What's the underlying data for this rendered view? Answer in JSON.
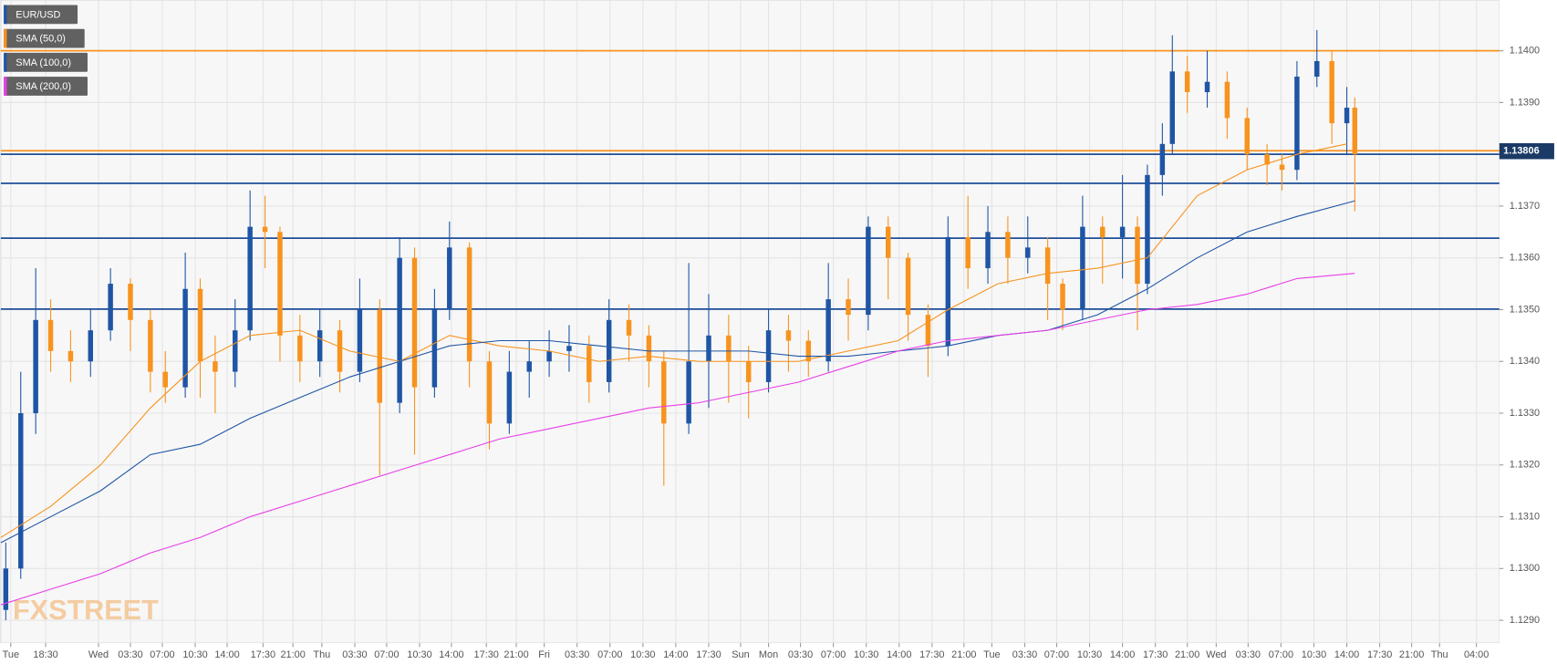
{
  "chart_data": {
    "type": "candlestick",
    "watermark": "FXSTREET",
    "grid": true,
    "xlim": [
      0,
      300.6
    ],
    "ylim": [
      1.12856,
      1.14098
    ],
    "xticks": [
      {
        "value": 2,
        "label": "Tue"
      },
      {
        "value": 9,
        "label": "18:30"
      },
      {
        "value": 19.6,
        "label": "Wed"
      },
      {
        "value": 26,
        "label": "03:30"
      },
      {
        "value": 32.4,
        "label": "07:00"
      },
      {
        "value": 39,
        "label": "10:30"
      },
      {
        "value": 45.4,
        "label": "14:00"
      },
      {
        "value": 52.6,
        "label": "17:30"
      },
      {
        "value": 58.6,
        "label": "21:00"
      },
      {
        "value": 64.4,
        "label": "Thu"
      },
      {
        "value": 71,
        "label": "03:30"
      },
      {
        "value": 77.4,
        "label": "07:00"
      },
      {
        "value": 84,
        "label": "10:30"
      },
      {
        "value": 90.4,
        "label": "14:00"
      },
      {
        "value": 97.4,
        "label": "17:30"
      },
      {
        "value": 103.4,
        "label": "21:00"
      },
      {
        "value": 109,
        "label": "Fri"
      },
      {
        "value": 115.6,
        "label": "03:30"
      },
      {
        "value": 122.2,
        "label": "07:00"
      },
      {
        "value": 128.8,
        "label": "10:30"
      },
      {
        "value": 135.4,
        "label": "14:00"
      },
      {
        "value": 142,
        "label": "17:30"
      },
      {
        "value": 148.4,
        "label": "Sun"
      },
      {
        "value": 154,
        "label": "Mon"
      },
      {
        "value": 160.4,
        "label": "03:30"
      },
      {
        "value": 167,
        "label": "07:00"
      },
      {
        "value": 173.6,
        "label": "10:30"
      },
      {
        "value": 180.2,
        "label": "14:00"
      },
      {
        "value": 186.8,
        "label": "17:30"
      },
      {
        "value": 193.2,
        "label": "21:00"
      },
      {
        "value": 198.8,
        "label": "Tue"
      },
      {
        "value": 205.4,
        "label": "03:30"
      },
      {
        "value": 211.8,
        "label": "07:00"
      },
      {
        "value": 218.4,
        "label": "10:30"
      },
      {
        "value": 225,
        "label": "14:00"
      },
      {
        "value": 231.6,
        "label": "17:30"
      },
      {
        "value": 238,
        "label": "21:00"
      },
      {
        "value": 243.8,
        "label": "Wed"
      },
      {
        "value": 250.2,
        "label": "03:30"
      },
      {
        "value": 256.8,
        "label": "07:00"
      },
      {
        "value": 263.4,
        "label": "10:30"
      },
      {
        "value": 270,
        "label": "14:00"
      },
      {
        "value": 276.6,
        "label": "17:30"
      },
      {
        "value": 283,
        "label": "21:00"
      },
      {
        "value": 288.6,
        "label": "Thu"
      },
      {
        "value": 296,
        "label": "04:00"
      }
    ],
    "yticks": [
      {
        "value": 1.129,
        "label": "1.1290"
      },
      {
        "value": 1.13,
        "label": "1.1300"
      },
      {
        "value": 1.131,
        "label": "1.1310"
      },
      {
        "value": 1.132,
        "label": "1.1320"
      },
      {
        "value": 1.133,
        "label": "1.1330"
      },
      {
        "value": 1.134,
        "label": "1.1340"
      },
      {
        "value": 1.135,
        "label": "1.1350"
      },
      {
        "value": 1.136,
        "label": "1.1360"
      },
      {
        "value": 1.137,
        "label": "1.1370"
      },
      {
        "value": 1.138,
        "label": "1.1380"
      },
      {
        "value": 1.139,
        "label": "1.1390"
      },
      {
        "value": 1.14,
        "label": "1.1400"
      }
    ],
    "current_price": 1.13806,
    "levels": [
      {
        "value": 1.14,
        "color": "#f7931e"
      },
      {
        "value": 1.13807,
        "color": "#f7931e"
      },
      {
        "value": 1.138,
        "color": "#1f4e99"
      },
      {
        "value": 1.13744,
        "color": "#1f4e99"
      },
      {
        "value": 1.13638,
        "color": "#1f4e99"
      },
      {
        "value": 1.13501,
        "color": "#1f4e99"
      }
    ],
    "series": [
      {
        "name": "EUR/USD",
        "color": "#1f55a5",
        "up_color": "#1f55a5",
        "down_color": "#f7931e",
        "x": [
          1,
          4,
          7,
          10,
          14,
          18,
          22,
          26,
          30,
          33,
          37,
          40,
          43,
          47,
          50,
          53,
          56,
          60,
          64,
          68,
          72,
          76,
          80,
          83,
          87,
          90,
          94,
          98,
          102,
          106,
          110,
          114,
          118,
          122,
          126,
          130,
          133,
          138,
          142,
          146,
          150,
          154,
          158,
          162,
          166,
          170,
          174,
          178,
          182,
          186,
          190,
          194,
          198,
          202,
          206,
          210,
          213,
          217,
          221,
          225,
          228,
          230,
          233,
          235,
          238,
          242,
          246,
          250,
          254,
          257,
          260,
          264,
          267,
          270,
          271.6
        ],
        "open": [
          1.1292,
          1.13,
          1.133,
          1.1348,
          1.1342,
          1.134,
          1.1346,
          1.1355,
          1.1348,
          1.1338,
          1.1335,
          1.1354,
          1.134,
          1.1338,
          1.1346,
          1.1366,
          1.1365,
          1.1345,
          1.134,
          1.1346,
          1.1338,
          1.135,
          1.1332,
          1.136,
          1.1335,
          1.135,
          1.1362,
          1.134,
          1.1328,
          1.1338,
          1.134,
          1.1342,
          1.1343,
          1.1336,
          1.1348,
          1.1345,
          1.134,
          1.1328,
          1.134,
          1.1345,
          1.134,
          1.1336,
          1.1346,
          1.1344,
          1.134,
          1.1352,
          1.1349,
          1.1366,
          1.136,
          1.1349,
          1.1343,
          1.1364,
          1.1358,
          1.1365,
          1.136,
          1.1362,
          1.1355,
          1.135,
          1.1366,
          1.1364,
          1.1366,
          1.1355,
          1.1376,
          1.1382,
          1.1396,
          1.1392,
          1.1394,
          1.1387,
          1.138,
          1.1378,
          1.1377,
          1.1395,
          1.1398,
          1.1386,
          1.1389
        ],
        "high": [
          1.1305,
          1.1338,
          1.1358,
          1.1352,
          1.1346,
          1.135,
          1.1358,
          1.1356,
          1.135,
          1.1342,
          1.1361,
          1.1356,
          1.1345,
          1.1352,
          1.1373,
          1.1372,
          1.1366,
          1.1349,
          1.135,
          1.1348,
          1.1356,
          1.1352,
          1.1364,
          1.1362,
          1.1354,
          1.1367,
          1.1363,
          1.1342,
          1.1342,
          1.1344,
          1.1346,
          1.1347,
          1.1345,
          1.1352,
          1.1351,
          1.1347,
          1.1342,
          1.1359,
          1.1353,
          1.1349,
          1.1343,
          1.135,
          1.1349,
          1.1346,
          1.1359,
          1.1356,
          1.1368,
          1.1368,
          1.1361,
          1.1351,
          1.1368,
          1.1372,
          1.137,
          1.1368,
          1.1368,
          1.1364,
          1.1356,
          1.1372,
          1.1368,
          1.1376,
          1.1368,
          1.1378,
          1.1386,
          1.1403,
          1.1399,
          1.14,
          1.1396,
          1.1389,
          1.1382,
          1.138,
          1.1398,
          1.1404,
          1.14,
          1.1393,
          1.1391
        ],
        "low": [
          1.129,
          1.1298,
          1.1326,
          1.1338,
          1.1336,
          1.1337,
          1.1344,
          1.1342,
          1.1334,
          1.1332,
          1.1333,
          1.1333,
          1.133,
          1.1335,
          1.1344,
          1.1358,
          1.134,
          1.1336,
          1.1337,
          1.1334,
          1.1336,
          1.1318,
          1.133,
          1.1322,
          1.1333,
          1.1348,
          1.1335,
          1.1323,
          1.1326,
          1.1333,
          1.1337,
          1.1338,
          1.1332,
          1.1334,
          1.134,
          1.1335,
          1.1316,
          1.1326,
          1.1331,
          1.1332,
          1.1329,
          1.1334,
          1.1338,
          1.1337,
          1.1338,
          1.1344,
          1.1346,
          1.1352,
          1.1344,
          1.1337,
          1.1341,
          1.1354,
          1.1355,
          1.1355,
          1.1357,
          1.1348,
          1.1346,
          1.1348,
          1.1355,
          1.1356,
          1.1346,
          1.1353,
          1.1372,
          1.138,
          1.1388,
          1.1389,
          1.1383,
          1.1377,
          1.1374,
          1.1373,
          1.1375,
          1.1393,
          1.1382,
          1.138,
          1.1369
        ],
        "close": [
          1.13,
          1.133,
          1.1348,
          1.1342,
          1.134,
          1.1346,
          1.1355,
          1.1348,
          1.1338,
          1.1335,
          1.1354,
          1.134,
          1.1338,
          1.1346,
          1.1366,
          1.1365,
          1.1345,
          1.134,
          1.1346,
          1.1338,
          1.135,
          1.1332,
          1.136,
          1.1335,
          1.135,
          1.1362,
          1.134,
          1.1328,
          1.1338,
          1.134,
          1.1342,
          1.1343,
          1.1336,
          1.1348,
          1.1345,
          1.134,
          1.1328,
          1.134,
          1.1345,
          1.134,
          1.1336,
          1.1346,
          1.1344,
          1.134,
          1.1352,
          1.1349,
          1.1366,
          1.136,
          1.1349,
          1.1343,
          1.1364,
          1.1358,
          1.1365,
          1.136,
          1.1362,
          1.1355,
          1.135,
          1.1366,
          1.1364,
          1.1366,
          1.1355,
          1.1376,
          1.1382,
          1.1396,
          1.1392,
          1.1394,
          1.1387,
          1.138,
          1.1378,
          1.1377,
          1.1395,
          1.1398,
          1.1386,
          1.1389,
          1.138
        ]
      },
      {
        "name": "SMA (50,0)",
        "color": "#f7931e",
        "x": [
          0,
          10,
          20,
          30,
          40,
          50,
          60,
          70,
          80,
          90,
          100,
          110,
          120,
          130,
          140,
          150,
          160,
          170,
          180,
          190,
          200,
          210,
          220,
          230,
          240,
          250,
          260,
          270
        ],
        "values": [
          1.1306,
          1.1312,
          1.132,
          1.1331,
          1.134,
          1.1345,
          1.1346,
          1.1342,
          1.134,
          1.1345,
          1.1343,
          1.1342,
          1.134,
          1.1341,
          1.134,
          1.134,
          1.134,
          1.1342,
          1.1344,
          1.135,
          1.1355,
          1.1357,
          1.1358,
          1.136,
          1.1372,
          1.1377,
          1.138,
          1.1382
        ]
      },
      {
        "name": "SMA (100,0)",
        "color": "#1f55a5",
        "x": [
          0,
          10,
          20,
          30,
          40,
          50,
          60,
          70,
          80,
          90,
          100,
          110,
          120,
          130,
          140,
          150,
          160,
          170,
          180,
          190,
          200,
          210,
          220,
          230,
          240,
          250,
          260,
          271.6
        ],
        "values": [
          1.1305,
          1.131,
          1.1315,
          1.1322,
          1.1324,
          1.1329,
          1.1333,
          1.1337,
          1.134,
          1.1343,
          1.1344,
          1.1344,
          1.1343,
          1.1342,
          1.1342,
          1.1342,
          1.1341,
          1.1341,
          1.1342,
          1.1343,
          1.1345,
          1.1346,
          1.1349,
          1.1354,
          1.136,
          1.1365,
          1.1368,
          1.1371
        ]
      },
      {
        "name": "SMA (200,0)",
        "color": "#e83ee8",
        "x": [
          0,
          10,
          20,
          30,
          40,
          50,
          60,
          70,
          80,
          90,
          100,
          110,
          120,
          130,
          140,
          150,
          160,
          170,
          180,
          190,
          200,
          210,
          220,
          230,
          240,
          250,
          260,
          271.6
        ],
        "values": [
          1.1293,
          1.1296,
          1.1299,
          1.1303,
          1.1306,
          1.131,
          1.1313,
          1.1316,
          1.1319,
          1.1322,
          1.1325,
          1.1327,
          1.1329,
          1.1331,
          1.1332,
          1.1334,
          1.1336,
          1.1339,
          1.1342,
          1.1344,
          1.1345,
          1.1346,
          1.1348,
          1.135,
          1.1351,
          1.1353,
          1.1356,
          1.1357
        ]
      }
    ]
  }
}
